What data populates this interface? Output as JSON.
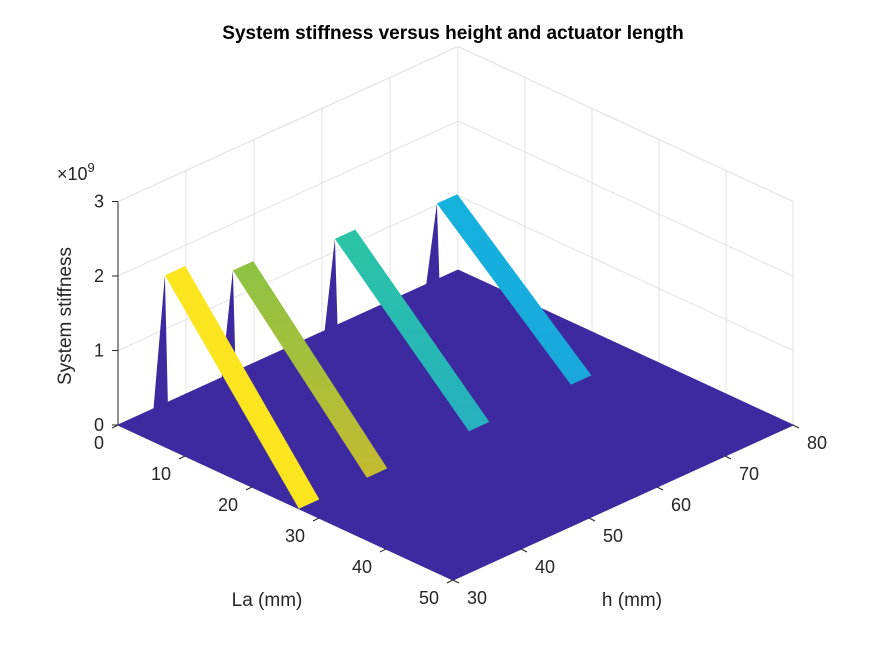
{
  "chart_data": {
    "type": "surface",
    "title": "System stiffness versus height and actuator length",
    "xlabel": "La (mm)",
    "ylabel": "h (mm)",
    "zlabel": "System stiffness",
    "z_multiplier_label": "×10",
    "z_multiplier_exponent": "9",
    "colormap": "parula",
    "base_color": "#3e2aa0",
    "x_ticks": [
      "0",
      "10",
      "20",
      "30",
      "40",
      "50"
    ],
    "y_ticks": [
      "30",
      "40",
      "50",
      "60",
      "70",
      "80"
    ],
    "z_ticks": [
      "0",
      "1",
      "2",
      "3"
    ],
    "xlim": [
      0,
      50
    ],
    "ylim": [
      30,
      80
    ],
    "zlim": [
      0,
      3
    ],
    "z_units_scale": 1000000000,
    "peaks": [
      {
        "h": 30,
        "La_start": 7,
        "La_end": 10,
        "z_top": 2.3,
        "z_bottom": 0.25,
        "color_top": "#fbe51f",
        "color_bottom": "#fbe51f"
      },
      {
        "h": 40,
        "La_start": 7,
        "La_end": 10,
        "z_top": 1.95,
        "z_bottom": 0.3,
        "color_top": "#8cc343",
        "color_bottom": "#c4ba30"
      },
      {
        "h": 55,
        "La_start": 7,
        "La_end": 10,
        "z_top": 1.75,
        "z_bottom": 0.2,
        "color_top": "#2bc5a4",
        "color_bottom": "#25b0c0"
      },
      {
        "h": 70,
        "La_start": 7,
        "La_end": 10,
        "z_top": 1.6,
        "z_bottom": 0.3,
        "color_top": "#14b2dd",
        "color_bottom": "#1aa8dc"
      }
    ]
  }
}
